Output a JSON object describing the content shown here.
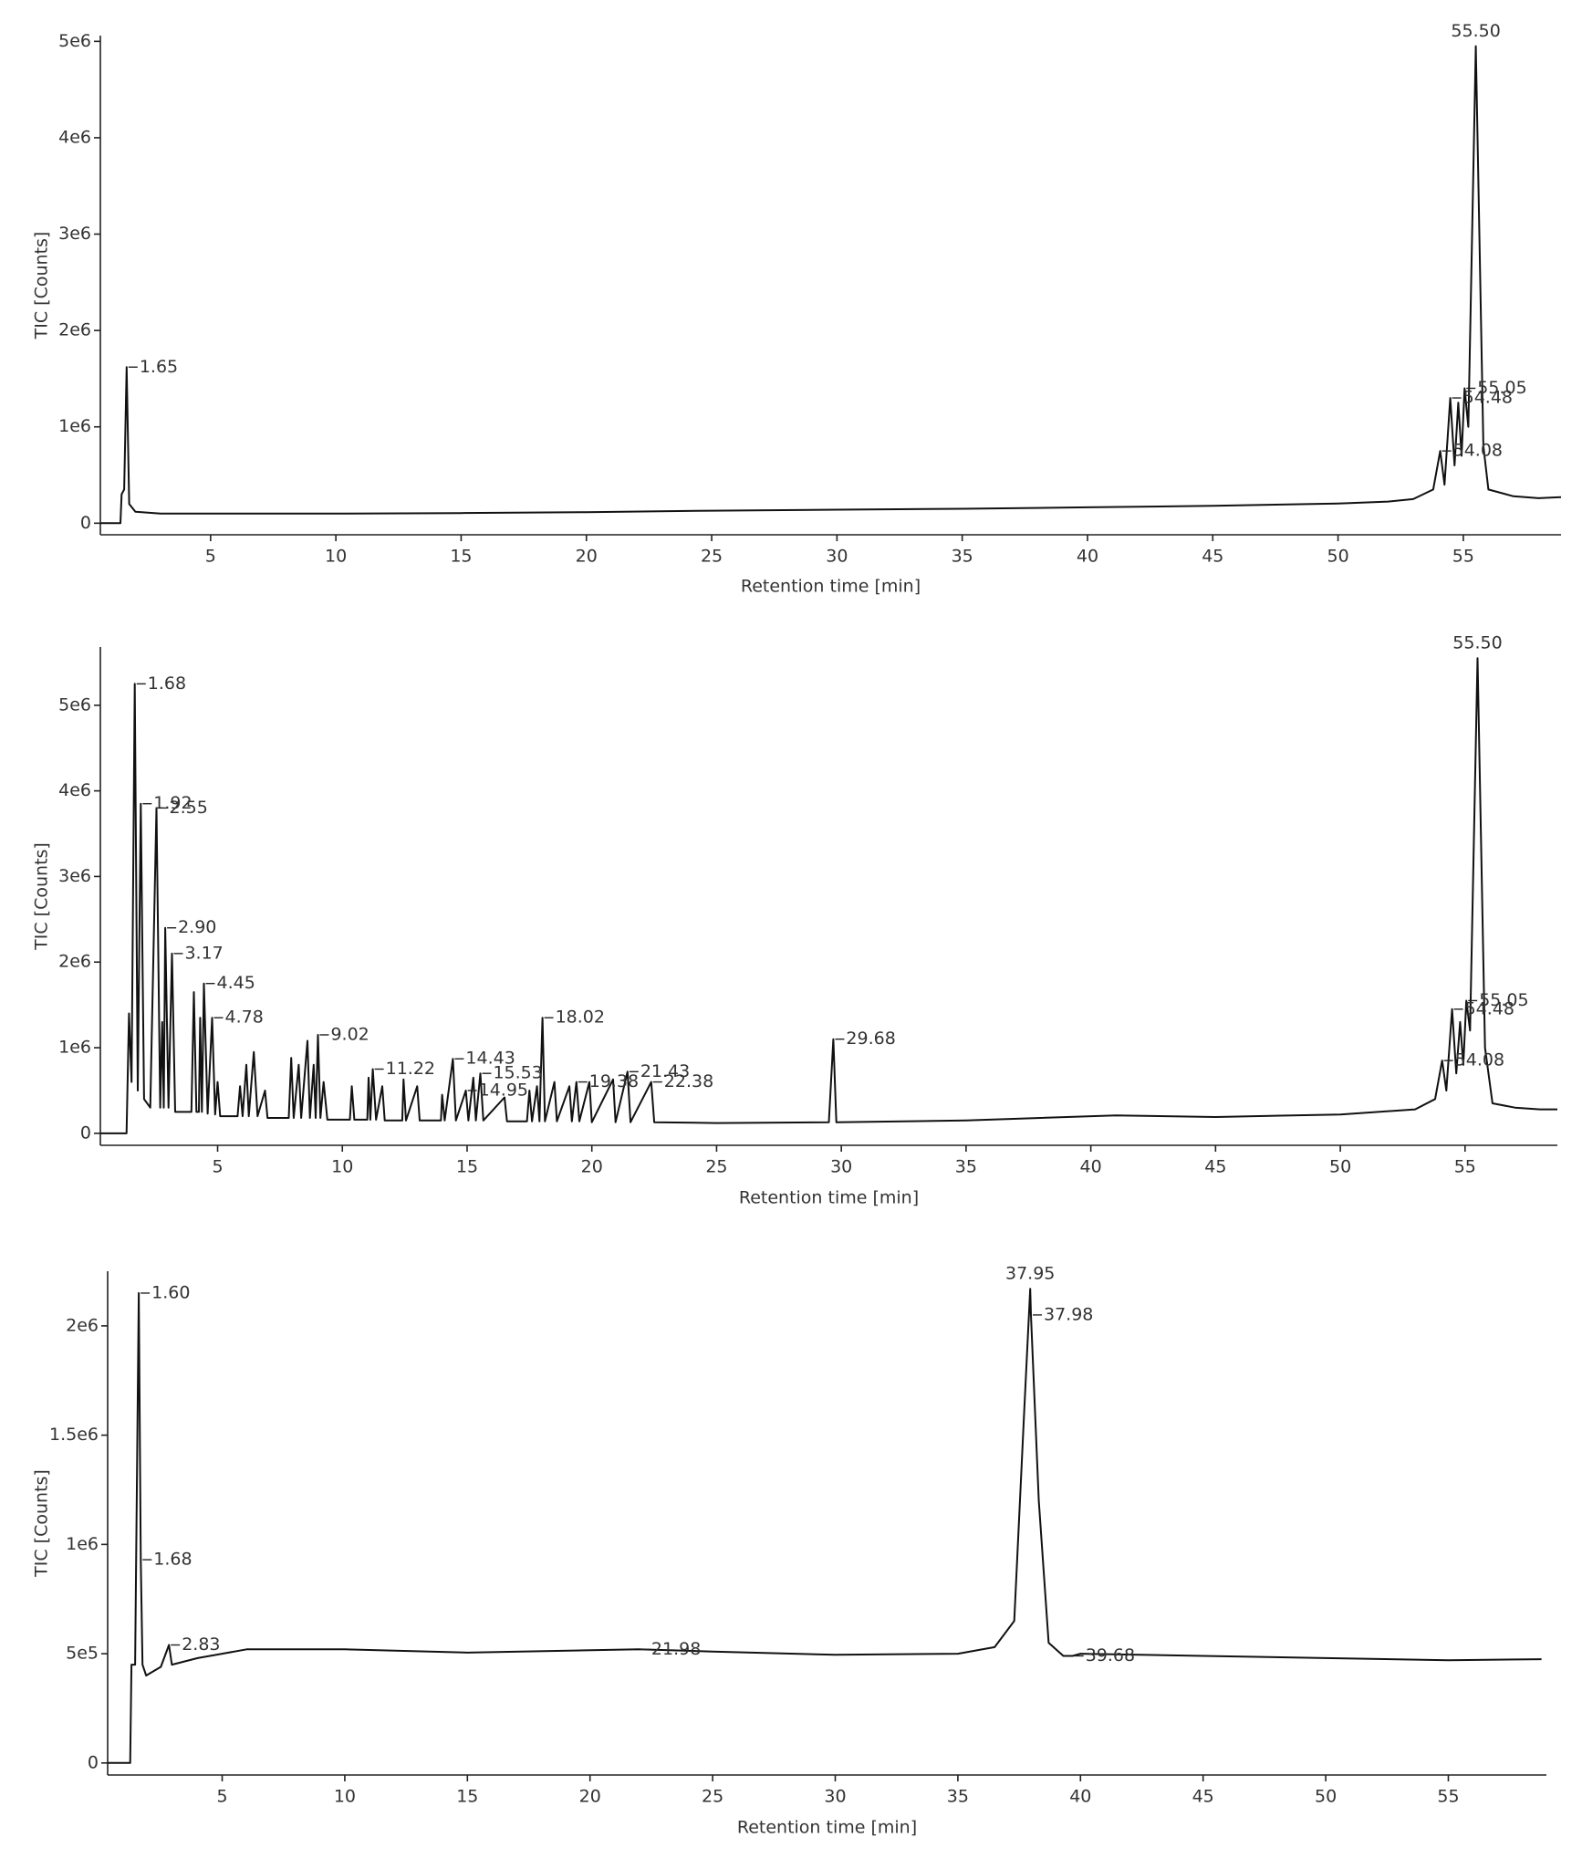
{
  "chart_data": [
    {
      "type": "line",
      "y_label": "TIC [Counts]",
      "x_label": "Retention time [min]",
      "color": "#111111",
      "xlim": [
        0.6,
        58.9
      ],
      "ylim": [
        -120000,
        5060000
      ],
      "xticks": [
        5,
        10,
        15,
        20,
        25,
        30,
        35,
        40,
        45,
        50,
        55
      ],
      "yticks": [
        0,
        {
          "value": 1000000,
          "label": "1e6"
        },
        {
          "value": 2000000,
          "label": "2e6"
        },
        {
          "value": 3000000,
          "label": "3e6"
        },
        {
          "value": 4000000,
          "label": "4e6"
        },
        {
          "value": 5000000,
          "label": "5e6"
        }
      ],
      "x": [
        0.6,
        1.4,
        1.45,
        1.55,
        1.65,
        1.75,
        2,
        3,
        5,
        10,
        15,
        20,
        25,
        30,
        35,
        40,
        45,
        50,
        52,
        53,
        53.8,
        54.08,
        54.25,
        54.48,
        54.65,
        54.8,
        54.93,
        55.05,
        55.2,
        55.5,
        55.8,
        56,
        57,
        58,
        58.9
      ],
      "values": [
        0,
        0,
        300000,
        350000,
        1620000,
        200000,
        120000,
        100000,
        100000,
        100000,
        105000,
        115000,
        130000,
        140000,
        150000,
        165000,
        180000,
        205000,
        225000,
        250000,
        350000,
        750000,
        400000,
        1300000,
        600000,
        1250000,
        700000,
        1400000,
        1000000,
        4950000,
        800000,
        350000,
        280000,
        260000,
        270000
      ],
      "peaks": [
        {
          "x": 1.65,
          "y": 1620000,
          "label": "1.65"
        },
        {
          "x": 54.08,
          "y": 750000,
          "label": "54.08"
        },
        {
          "x": 54.48,
          "y": 1300000,
          "label": "54.48"
        },
        {
          "x": 55.05,
          "y": 1400000,
          "label": "55.05"
        },
        {
          "x": 55.5,
          "y": 4950000,
          "label": "55.50"
        }
      ]
    },
    {
      "type": "line",
      "y_label": "TIC [Counts]",
      "x_label": "Retention time [min]",
      "color": "#111111",
      "xlim": [
        0.3,
        58.7
      ],
      "ylim": [
        -140000,
        5680000
      ],
      "xticks": [
        5,
        10,
        15,
        20,
        25,
        30,
        35,
        40,
        45,
        50,
        55
      ],
      "yticks": [
        0,
        {
          "value": 1000000,
          "label": "1e6"
        },
        {
          "value": 2000000,
          "label": "2e6"
        },
        {
          "value": 3000000,
          "label": "3e6"
        },
        {
          "value": 4000000,
          "label": "4e6"
        },
        {
          "value": 5000000,
          "label": "5e6"
        }
      ],
      "x": [
        0.3,
        1.35,
        1.45,
        1.55,
        1.68,
        1.8,
        1.92,
        2.05,
        2.3,
        2.55,
        2.7,
        2.78,
        2.84,
        2.9,
        3.03,
        3.17,
        3.3,
        3.95,
        4.05,
        4.15,
        4.25,
        4.3,
        4.37,
        4.45,
        4.6,
        4.78,
        4.9,
        5.0,
        5.1,
        5.8,
        5.9,
        6.0,
        6.15,
        6.25,
        6.45,
        6.6,
        6.9,
        7.0,
        7.85,
        7.95,
        8.05,
        8.25,
        8.35,
        8.6,
        8.7,
        8.85,
        8.93,
        9.02,
        9.12,
        9.25,
        9.4,
        10.3,
        10.38,
        10.48,
        11.0,
        11.05,
        11.12,
        11.22,
        11.35,
        11.6,
        11.7,
        12.4,
        12.45,
        12.55,
        13.0,
        13.1,
        13.95,
        14.0,
        14.1,
        14.43,
        14.55,
        14.95,
        15.05,
        15.25,
        15.35,
        15.53,
        15.65,
        16.5,
        16.6,
        17.4,
        17.5,
        17.6,
        17.8,
        17.9,
        18.02,
        18.12,
        18.5,
        18.6,
        19.1,
        19.2,
        19.38,
        19.5,
        19.9,
        20.0,
        20.85,
        20.95,
        21.43,
        21.55,
        22.38,
        22.5,
        25,
        29.5,
        29.68,
        29.8,
        35,
        41,
        45,
        50,
        53,
        53.8,
        54.08,
        54.25,
        54.48,
        54.65,
        54.8,
        54.93,
        55.05,
        55.2,
        55.5,
        55.8,
        56.1,
        57,
        58,
        58.7
      ],
      "values": [
        0,
        0,
        1400000,
        600000,
        5250000,
        500000,
        3850000,
        400000,
        300000,
        3800000,
        300000,
        1300000,
        300000,
        2400000,
        300000,
        2100000,
        250000,
        250000,
        1650000,
        250000,
        250000,
        1350000,
        250000,
        1750000,
        230000,
        1350000,
        220000,
        600000,
        200000,
        200000,
        550000,
        200000,
        800000,
        200000,
        950000,
        200000,
        500000,
        180000,
        180000,
        880000,
        180000,
        800000,
        180000,
        1080000,
        180000,
        800000,
        180000,
        1150000,
        180000,
        600000,
        160000,
        160000,
        550000,
        160000,
        160000,
        650000,
        160000,
        750000,
        160000,
        550000,
        150000,
        150000,
        630000,
        150000,
        550000,
        150000,
        150000,
        450000,
        150000,
        870000,
        150000,
        500000,
        150000,
        650000,
        150000,
        700000,
        150000,
        420000,
        140000,
        140000,
        500000,
        140000,
        550000,
        140000,
        1350000,
        140000,
        600000,
        140000,
        550000,
        140000,
        600000,
        140000,
        600000,
        130000,
        630000,
        130000,
        720000,
        130000,
        600000,
        130000,
        120000,
        130000,
        1100000,
        130000,
        150000,
        210000,
        190000,
        220000,
        280000,
        400000,
        850000,
        500000,
        1450000,
        700000,
        1300000,
        800000,
        1550000,
        1200000,
        5550000,
        1000000,
        350000,
        300000,
        280000,
        280000
      ],
      "peaks": [
        {
          "x": 1.68,
          "y": 5250000,
          "label": "1.68"
        },
        {
          "x": 1.92,
          "y": 3850000,
          "label": "1.92"
        },
        {
          "x": 2.55,
          "y": 3800000,
          "label": "2.55"
        },
        {
          "x": 2.9,
          "y": 2400000,
          "label": "2.90"
        },
        {
          "x": 3.17,
          "y": 2100000,
          "label": "3.17"
        },
        {
          "x": 4.45,
          "y": 1750000,
          "label": "4.45"
        },
        {
          "x": 4.78,
          "y": 1350000,
          "label": "4.78"
        },
        {
          "x": 9.02,
          "y": 1150000,
          "label": "9.02"
        },
        {
          "x": 11.22,
          "y": 750000,
          "label": "11.22"
        },
        {
          "x": 14.43,
          "y": 870000,
          "label": "14.43"
        },
        {
          "x": 14.95,
          "y": 500000,
          "label": "14.95"
        },
        {
          "x": 15.53,
          "y": 700000,
          "label": "15.53"
        },
        {
          "x": 18.02,
          "y": 1350000,
          "label": "18.02"
        },
        {
          "x": 19.38,
          "y": 600000,
          "label": "19.38"
        },
        {
          "x": 21.43,
          "y": 720000,
          "label": "21.43"
        },
        {
          "x": 22.38,
          "y": 600000,
          "label": "22.38"
        },
        {
          "x": 29.68,
          "y": 1100000,
          "label": "29.68"
        },
        {
          "x": 54.08,
          "y": 850000,
          "label": "54.08"
        },
        {
          "x": 54.48,
          "y": 1450000,
          "label": "54.48"
        },
        {
          "x": 55.05,
          "y": 1550000,
          "label": "55.05"
        },
        {
          "x": 55.5,
          "y": 5550000,
          "label": "55.50"
        }
      ]
    },
    {
      "type": "line",
      "y_label": "TIC [Counts]",
      "x_label": "Retention time [min]",
      "color": "#111111",
      "xlim": [
        0.33,
        59.0
      ],
      "ylim": [
        -55000,
        2250000
      ],
      "xticks": [
        5,
        10,
        15,
        20,
        25,
        30,
        35,
        40,
        45,
        50,
        55
      ],
      "yticks": [
        0,
        {
          "value": 500000,
          "label": "5e5"
        },
        {
          "value": 1000000,
          "label": "1e6"
        },
        {
          "value": 1500000,
          "label": "1.5e6"
        },
        {
          "value": 2000000,
          "label": "2e6"
        }
      ],
      "x": [
        0.33,
        1.25,
        1.3,
        1.45,
        1.6,
        1.68,
        1.75,
        1.9,
        2.5,
        2.83,
        2.95,
        4,
        5,
        6,
        10,
        15,
        21.98,
        25,
        30,
        35,
        36.5,
        37.3,
        37.7,
        37.95,
        37.98,
        38.3,
        38.7,
        39.3,
        39.68,
        40,
        45,
        50,
        55,
        58.8
      ],
      "values": [
        0,
        0,
        450000,
        450000,
        2150000,
        930000,
        450000,
        400000,
        440000,
        540000,
        450000,
        480000,
        500000,
        520000,
        520000,
        505000,
        520000,
        510000,
        495000,
        500000,
        530000,
        650000,
        1600000,
        2170000,
        2050000,
        1200000,
        550000,
        490000,
        490000,
        500000,
        490000,
        480000,
        470000,
        475000
      ],
      "peaks": [
        {
          "x": 1.6,
          "y": 2150000,
          "label": "1.60"
        },
        {
          "x": 1.68,
          "y": 930000,
          "label": "1.68"
        },
        {
          "x": 2.83,
          "y": 540000,
          "label": "2.83"
        },
        {
          "x": 21.98,
          "y": 520000,
          "label": "21.98"
        },
        {
          "x": 37.95,
          "y": 2170000,
          "label": "37.95"
        },
        {
          "x": 37.98,
          "y": 2050000,
          "label": "37.98"
        },
        {
          "x": 39.68,
          "y": 490000,
          "label": "39.68"
        }
      ]
    }
  ]
}
